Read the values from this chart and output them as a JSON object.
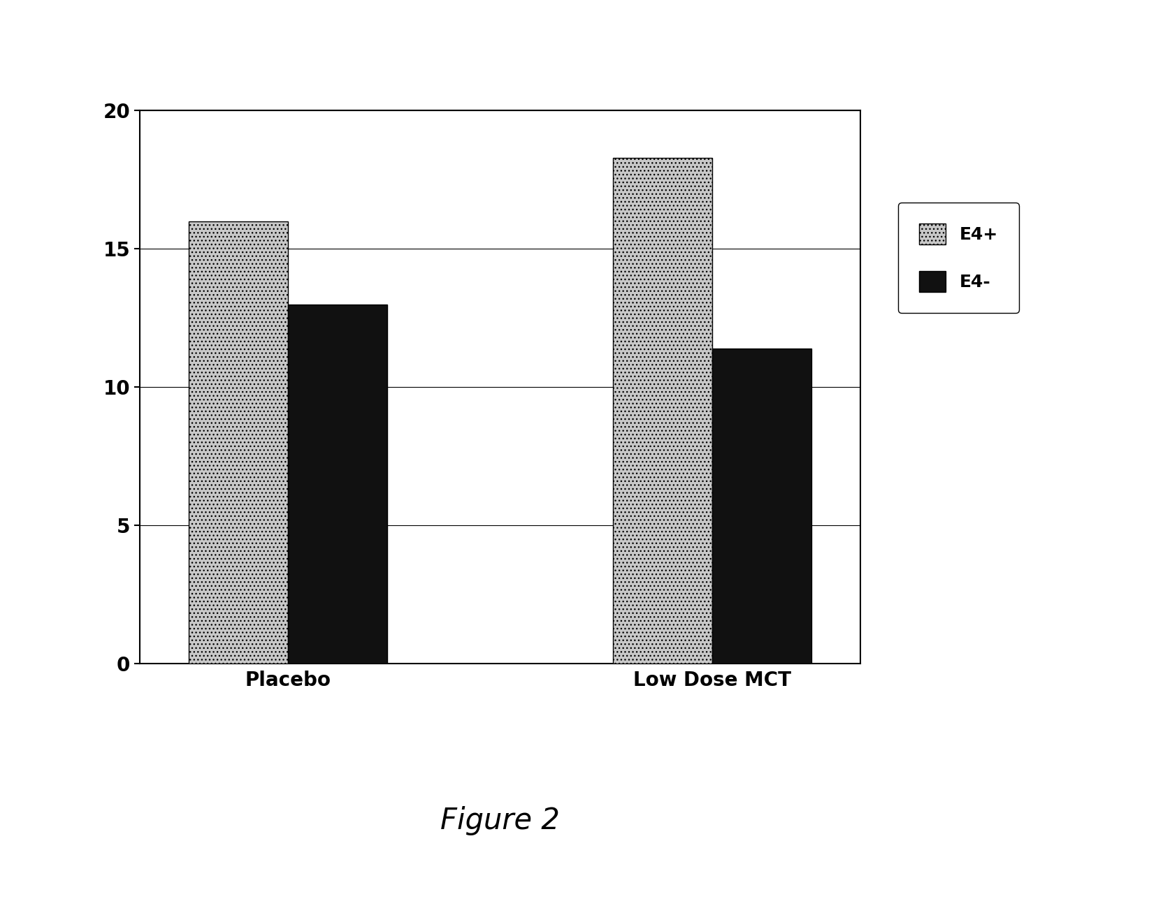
{
  "categories": [
    "Placebo",
    "Low Dose MCT"
  ],
  "e4plus_values": [
    16.0,
    18.3
  ],
  "e4minus_values": [
    13.0,
    11.4
  ],
  "ylim": [
    0,
    20
  ],
  "yticks": [
    0,
    5,
    10,
    15,
    20
  ],
  "bar_width": 0.28,
  "group_positions": [
    1.0,
    2.2
  ],
  "e4plus_color": "#c8c8c8",
  "e4minus_color": "#111111",
  "legend_e4plus": "E4+",
  "legend_e4minus": "E4-",
  "tick_fontsize": 20,
  "xtick_fontsize": 20,
  "legend_fontsize": 18,
  "caption": "Figure 2",
  "caption_fontsize": 30,
  "background_color": "#ffffff",
  "hatch_e4plus": "...",
  "grid_color": "#000000",
  "spine_linewidth": 1.5
}
